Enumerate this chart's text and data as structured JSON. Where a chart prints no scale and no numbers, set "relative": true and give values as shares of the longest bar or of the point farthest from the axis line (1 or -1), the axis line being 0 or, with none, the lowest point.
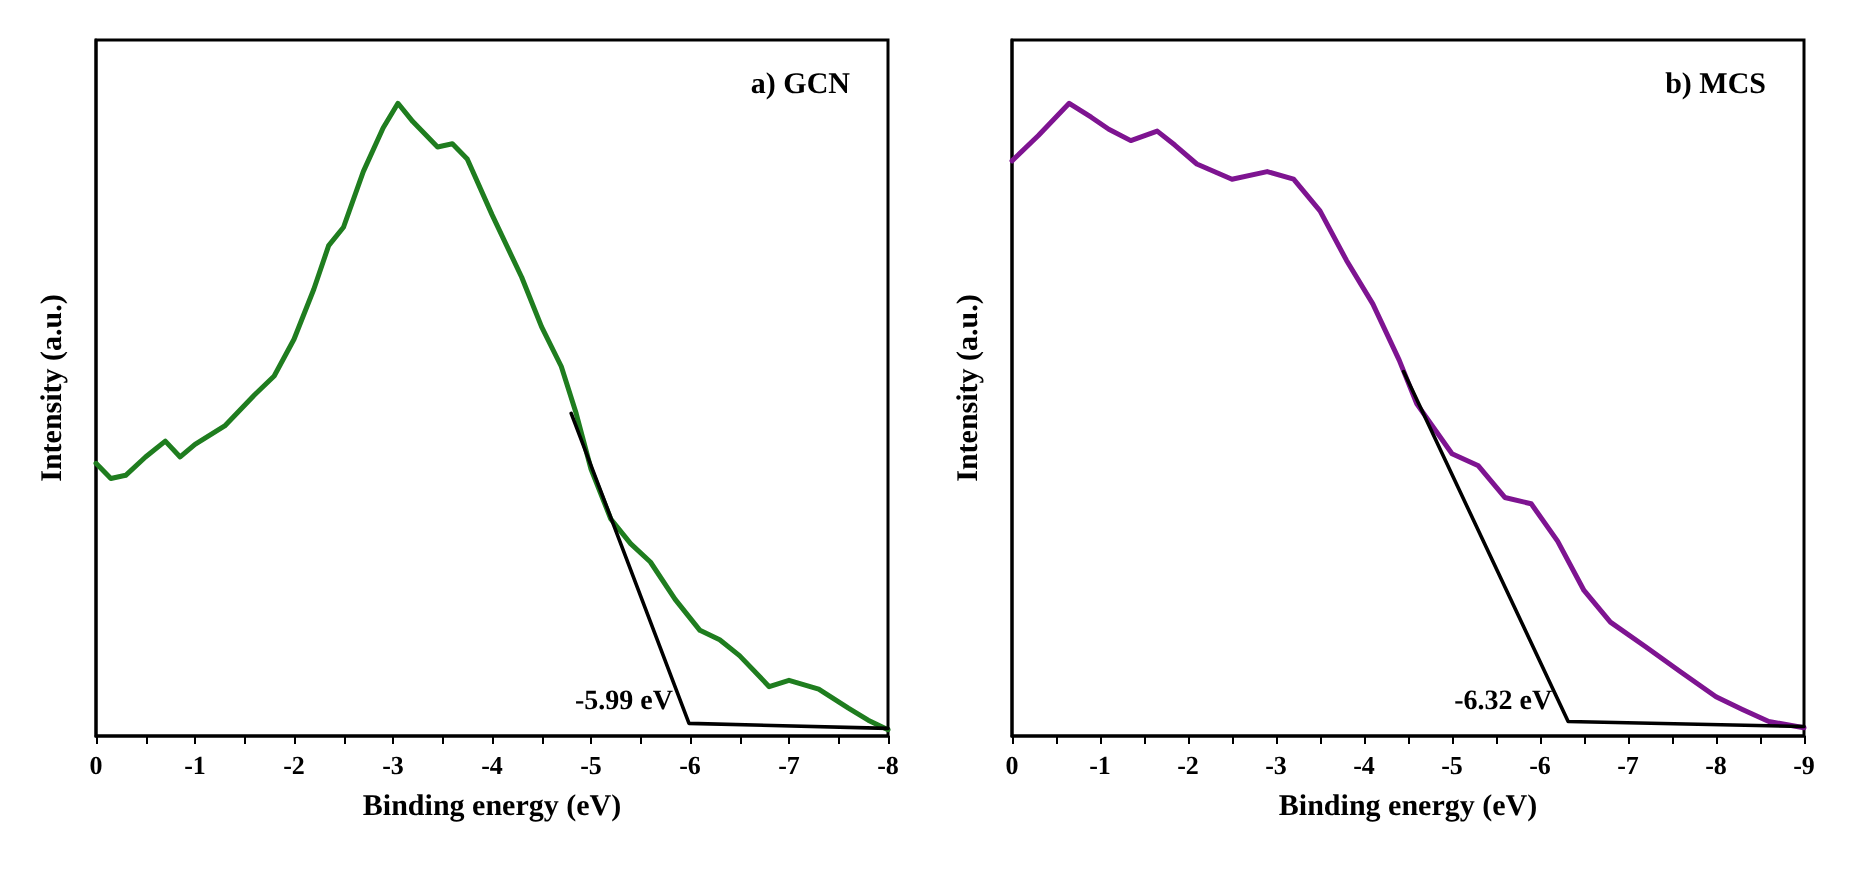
{
  "chart_data": [
    {
      "type": "line",
      "title": "a) GCN",
      "xlabel": "Binding energy (eV)",
      "ylabel": "Intensity (a.u.)",
      "relative": true,
      "grid": false,
      "marker": "none",
      "line_style": "solid",
      "xlim": [
        0,
        -8
      ],
      "xticks": [
        0,
        {
          "value": -0.5,
          "label": null
        },
        -1,
        {
          "value": -1.5,
          "label": null
        },
        -2,
        {
          "value": -2.5,
          "label": null
        },
        -3,
        {
          "value": -3.5,
          "label": null
        },
        -4,
        {
          "value": -4.5,
          "label": null
        },
        -5,
        {
          "value": -5.5,
          "label": null
        },
        -6,
        {
          "value": -6.5,
          "label": null
        },
        -7,
        {
          "value": -7.5,
          "label": null
        },
        -8
      ],
      "series": [
        {
          "color": "#1f7d1f",
          "x": [
            0,
            -0.15,
            -0.3,
            -0.5,
            -0.7,
            -0.85,
            -1.0,
            -1.3,
            -1.6,
            -1.8,
            -2.0,
            -2.2,
            -2.35,
            -2.5,
            -2.7,
            -2.9,
            -3.05,
            -3.2,
            -3.45,
            -3.6,
            -3.75,
            -4.0,
            -4.3,
            -4.5,
            -4.7,
            -4.85,
            -5.0,
            -5.2,
            -5.4,
            -5.6,
            -5.85,
            -6.1,
            -6.3,
            -6.5,
            -6.8,
            -7.0,
            -7.3,
            -7.6,
            -7.8,
            -8.0
          ],
          "values": [
            0.431,
            0.407,
            0.412,
            0.441,
            0.466,
            0.441,
            0.461,
            0.49,
            0.539,
            0.569,
            0.627,
            0.706,
            0.775,
            0.804,
            0.892,
            0.961,
            1,
            0.971,
            0.931,
            0.936,
            0.912,
            0.824,
            0.725,
            0.647,
            0.584,
            0.51,
            0.422,
            0.343,
            0.304,
            0.275,
            0.216,
            0.167,
            0.152,
            0.127,
            0.078,
            0.088,
            0.074,
            0.044,
            0.025,
            0.01
          ]
        },
        {
          "color": "#000000",
          "x": [
            -4.8,
            -5.99,
            -8.0
          ],
          "values": [
            0.51,
            0.02,
            0.012
          ]
        }
      ],
      "annotations": [
        {
          "text": "-5.99 eV",
          "x": -5.99
        }
      ]
    },
    {
      "type": "line",
      "title": "b) MCS",
      "xlabel": "Binding energy (eV)",
      "ylabel": "Intensity (a.u.)",
      "relative": true,
      "grid": false,
      "marker": "none",
      "line_style": "solid",
      "xlim": [
        0,
        -9
      ],
      "xticks": [
        0,
        {
          "value": -0.5,
          "label": null
        },
        -1,
        {
          "value": -1.5,
          "label": null
        },
        -2,
        {
          "value": -2.5,
          "label": null
        },
        -3,
        {
          "value": -3.5,
          "label": null
        },
        -4,
        {
          "value": -4.5,
          "label": null
        },
        -5,
        {
          "value": -5.5,
          "label": null
        },
        -6,
        {
          "value": -6.5,
          "label": null
        },
        -7,
        {
          "value": -7.5,
          "label": null
        },
        -8,
        {
          "value": -8.5,
          "label": null
        },
        -9
      ],
      "series": [
        {
          "color": "#7e1491",
          "x": [
            0,
            -0.3,
            -0.65,
            -0.9,
            -1.1,
            -1.35,
            -1.65,
            -1.85,
            -2.1,
            -2.5,
            -2.9,
            -3.2,
            -3.5,
            -3.8,
            -4.1,
            -4.4,
            -4.6,
            -5.0,
            -5.3,
            -5.6,
            -5.9,
            -6.2,
            -6.5,
            -6.8,
            -7.2,
            -7.6,
            -8.0,
            -8.3,
            -8.6,
            -9.0
          ],
          "values": [
            0.909,
            0.949,
            1,
            0.978,
            0.959,
            0.941,
            0.956,
            0.934,
            0.904,
            0.88,
            0.892,
            0.88,
            0.83,
            0.752,
            0.683,
            0.594,
            0.525,
            0.446,
            0.427,
            0.377,
            0.367,
            0.308,
            0.23,
            0.18,
            0.141,
            0.101,
            0.062,
            0.042,
            0.023,
            0.013
          ]
        },
        {
          "color": "#000000",
          "x": [
            -4.45,
            -6.32,
            -9.0
          ],
          "values": [
            0.576,
            0.023,
            0.015
          ]
        }
      ],
      "annotations": [
        {
          "text": "-6.32 eV",
          "x": -6.32
        }
      ]
    }
  ]
}
